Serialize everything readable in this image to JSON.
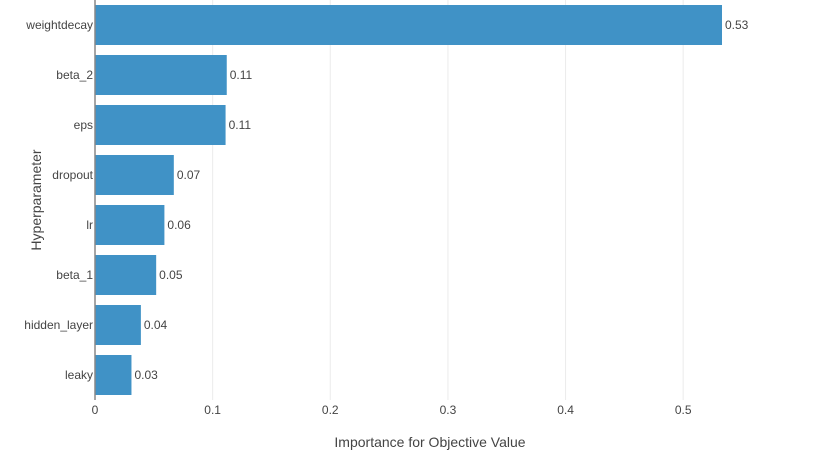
{
  "chart_data": {
    "type": "bar",
    "orientation": "horizontal",
    "title": "",
    "xlabel": "Importance for Objective Value",
    "ylabel": "Hyperparameter",
    "xlim": [
      0,
      0.55
    ],
    "xticks": [
      0,
      0.1,
      0.2,
      0.3,
      0.4,
      0.5
    ],
    "xtick_labels": [
      "0",
      "0.1",
      "0.2",
      "0.3",
      "0.4",
      "0.5"
    ],
    "grid": true,
    "categories": [
      "weightdecay",
      "beta_2",
      "eps",
      "dropout",
      "lr",
      "beta_1",
      "hidden_layer",
      "leaky"
    ],
    "values": [
      0.533,
      0.112,
      0.111,
      0.067,
      0.059,
      0.052,
      0.039,
      0.031
    ],
    "value_labels": [
      "0.53",
      "0.11",
      "0.11",
      "0.07",
      "0.06",
      "0.05",
      "0.04",
      "0.03"
    ],
    "bar_color": "#4092c6"
  }
}
